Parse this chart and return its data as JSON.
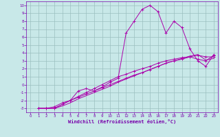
{
  "bg_color": "#c8e8e8",
  "grid_color": "#9bbfbf",
  "line_color": "#aa00aa",
  "xlabel": "Windchill (Refroidissement éolien,°C)",
  "xlabel_color": "#7700aa",
  "tick_color": "#7700aa",
  "xlim": [
    -0.5,
    23.5
  ],
  "ylim": [
    -3.5,
    10.5
  ],
  "xticks": [
    0,
    1,
    2,
    3,
    4,
    5,
    6,
    7,
    8,
    9,
    10,
    11,
    12,
    13,
    14,
    15,
    16,
    17,
    18,
    19,
    20,
    21,
    22,
    23
  ],
  "yticks": [
    -3,
    -2,
    -1,
    0,
    1,
    2,
    3,
    4,
    5,
    6,
    7,
    8,
    9,
    10
  ],
  "line1_x": [
    1,
    2,
    3,
    4,
    5,
    6,
    7,
    8,
    9,
    10,
    11,
    12,
    13,
    14,
    15,
    16,
    17,
    18,
    19,
    20,
    21,
    22,
    23
  ],
  "line1_y": [
    -3,
    -3,
    -3,
    -2.5,
    -2.0,
    -1.5,
    -1.0,
    -0.5,
    0.0,
    0.5,
    1.0,
    1.3,
    1.7,
    2.0,
    2.3,
    2.7,
    3.0,
    3.2,
    3.4,
    3.5,
    3.2,
    3.0,
    3.7
  ],
  "line1_marker": "+",
  "line2_x": [
    1,
    2,
    3,
    4,
    5,
    6,
    7,
    8,
    9,
    10,
    11,
    12,
    13,
    14,
    15,
    16,
    17,
    18,
    19,
    20,
    21,
    22,
    23
  ],
  "line2_y": [
    -3,
    -3,
    -2.8,
    -2.3,
    -2.0,
    -1.6,
    -1.2,
    -0.8,
    -0.4,
    0.0,
    0.4,
    0.8,
    1.2,
    1.5,
    1.9,
    2.3,
    2.7,
    3.0,
    3.2,
    3.5,
    3.7,
    3.5,
    3.5
  ],
  "line2_marker": "+",
  "line3_x": [
    1,
    2,
    3,
    5,
    6,
    7,
    8,
    9,
    10,
    11,
    12,
    13,
    14,
    15,
    16,
    17,
    18,
    19,
    20,
    21,
    22,
    23
  ],
  "line3_y": [
    -3,
    -3,
    -3,
    -2.0,
    -0.8,
    -0.5,
    -0.8,
    -0.3,
    0.3,
    0.8,
    6.5,
    8.0,
    9.5,
    10.0,
    9.2,
    6.5,
    8.0,
    7.2,
    4.5,
    3.0,
    2.3,
    3.8
  ],
  "line3_marker": "+",
  "line4_x": [
    1,
    2,
    3,
    4,
    5,
    6,
    7,
    8,
    9,
    10,
    11,
    12,
    13,
    14,
    15,
    16,
    17,
    18,
    19,
    20,
    21,
    22,
    23
  ],
  "line4_y": [
    -3,
    -3,
    -3,
    -2.7,
    -2.3,
    -1.8,
    -1.4,
    -1.0,
    -0.6,
    -0.2,
    0.3,
    0.7,
    1.1,
    1.5,
    1.9,
    2.3,
    2.7,
    3.0,
    3.3,
    3.6,
    3.8,
    3.1,
    3.3
  ],
  "line4_marker": "+"
}
